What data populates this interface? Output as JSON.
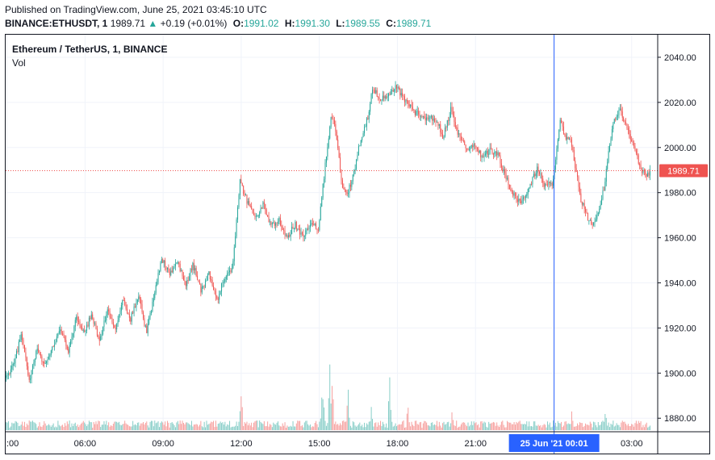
{
  "header": {
    "published": "Published on TradingView.com, June 25, 2021 03:45:10 UTC",
    "symbol": "BINANCE:ETHUSDT, 1",
    "last": "1989.71",
    "change_arrow": "▲",
    "change": "+0.19 (+0.01%)",
    "o_label": "O:",
    "o_value": "1991.02",
    "h_label": "H:",
    "h_value": "1991.30",
    "l_label": "L:",
    "l_value": "1989.55",
    "c_label": "C:",
    "c_value": "1989.71"
  },
  "legend": {
    "title": "Ethereum / TetherUS, 1, BINANCE",
    "volume": "Vol"
  },
  "colors": {
    "up": "#26a69a",
    "down": "#ef5350",
    "grid": "#f0f3fa",
    "crosshair": "#2962ff",
    "price_line": "#ef5350",
    "time_highlight": "#2962ff"
  },
  "chart_data": {
    "type": "candlestick",
    "title": "Ethereum / TetherUS, 1, BINANCE",
    "y_ticks": [
      1880,
      1900,
      1920,
      1940,
      1960,
      1980,
      2000,
      2020,
      2040
    ],
    "y_tick_labels": [
      "1880.00",
      "1900.00",
      "1920.00",
      "1940.00",
      "1960.00",
      "1980.00",
      "2000.00",
      "2020.00",
      "2040.00"
    ],
    "ylim": [
      1874,
      2050
    ],
    "x_ticks_hours": [
      3,
      6,
      9,
      12,
      15,
      18,
      21,
      24,
      27
    ],
    "x_tick_labels": [
      ":00",
      "06:00",
      "09:00",
      "12:00",
      "15:00",
      "18:00",
      "21:00",
      "",
      "03:00"
    ],
    "xlim_hours": [
      2.95,
      28.0
    ],
    "last_price": 1989.71,
    "last_price_label": "1989.71",
    "crosshair_hours": 24.02,
    "crosshair_label": "25 Jun '21   00:01",
    "grid": true,
    "legend_position": "top-left",
    "price_path": [
      [
        3.0,
        1898
      ],
      [
        3.3,
        1903
      ],
      [
        3.6,
        1918
      ],
      [
        3.9,
        1897
      ],
      [
        4.2,
        1911
      ],
      [
        4.5,
        1903
      ],
      [
        4.8,
        1911
      ],
      [
        5.1,
        1920
      ],
      [
        5.4,
        1910
      ],
      [
        5.7,
        1925
      ],
      [
        6.0,
        1918
      ],
      [
        6.3,
        1926
      ],
      [
        6.6,
        1914
      ],
      [
        6.9,
        1928
      ],
      [
        7.2,
        1920
      ],
      [
        7.5,
        1933
      ],
      [
        7.8,
        1924
      ],
      [
        8.1,
        1934
      ],
      [
        8.4,
        1918
      ],
      [
        8.7,
        1935
      ],
      [
        9.0,
        1951
      ],
      [
        9.3,
        1944
      ],
      [
        9.6,
        1950
      ],
      [
        9.9,
        1939
      ],
      [
        10.2,
        1948
      ],
      [
        10.5,
        1936
      ],
      [
        10.8,
        1944
      ],
      [
        11.1,
        1932
      ],
      [
        11.4,
        1942
      ],
      [
        11.7,
        1946
      ],
      [
        12.0,
        1985
      ],
      [
        12.3,
        1975
      ],
      [
        12.6,
        1968
      ],
      [
        12.9,
        1975
      ],
      [
        13.2,
        1965
      ],
      [
        13.5,
        1968
      ],
      [
        13.8,
        1960
      ],
      [
        14.1,
        1966
      ],
      [
        14.4,
        1961
      ],
      [
        14.7,
        1966
      ],
      [
        15.0,
        1964
      ],
      [
        15.3,
        1995
      ],
      [
        15.5,
        2015
      ],
      [
        15.7,
        2006
      ],
      [
        15.9,
        1983
      ],
      [
        16.1,
        1979
      ],
      [
        16.3,
        1985
      ],
      [
        16.6,
        2002
      ],
      [
        16.9,
        2013
      ],
      [
        17.1,
        2026
      ],
      [
        17.4,
        2022
      ],
      [
        17.7,
        2024
      ],
      [
        18.0,
        2027
      ],
      [
        18.3,
        2022
      ],
      [
        18.6,
        2017
      ],
      [
        18.9,
        2014
      ],
      [
        19.2,
        2013
      ],
      [
        19.5,
        2013
      ],
      [
        19.8,
        2005
      ],
      [
        20.1,
        2017
      ],
      [
        20.4,
        2005
      ],
      [
        20.7,
        2000
      ],
      [
        21.0,
        2001
      ],
      [
        21.3,
        1996
      ],
      [
        21.6,
        1999
      ],
      [
        21.9,
        1997
      ],
      [
        22.2,
        1987
      ],
      [
        22.5,
        1979
      ],
      [
        22.8,
        1976
      ],
      [
        23.1,
        1982
      ],
      [
        23.4,
        1991
      ],
      [
        23.7,
        1983
      ],
      [
        24.0,
        1984
      ],
      [
        24.3,
        2012
      ],
      [
        24.5,
        2004
      ],
      [
        24.7,
        2004
      ],
      [
        24.9,
        1990
      ],
      [
        25.1,
        1977
      ],
      [
        25.3,
        1970
      ],
      [
        25.5,
        1965
      ],
      [
        25.8,
        1973
      ],
      [
        26.0,
        1983
      ],
      [
        26.2,
        2002
      ],
      [
        26.4,
        2013
      ],
      [
        26.6,
        2016
      ],
      [
        26.8,
        2010
      ],
      [
        27.0,
        2005
      ],
      [
        27.2,
        1998
      ],
      [
        27.4,
        1990
      ],
      [
        27.6,
        1987
      ],
      [
        27.75,
        1989.71
      ]
    ],
    "volume_spikes": [
      [
        12.0,
        65
      ],
      [
        15.1,
        44
      ],
      [
        15.15,
        58
      ],
      [
        15.4,
        112
      ],
      [
        15.5,
        85
      ],
      [
        16.1,
        60
      ],
      [
        17.0,
        32
      ],
      [
        17.7,
        70
      ],
      [
        18.4,
        36
      ],
      [
        20.1,
        30
      ],
      [
        24.7,
        28
      ],
      [
        26.0,
        30
      ]
    ]
  }
}
